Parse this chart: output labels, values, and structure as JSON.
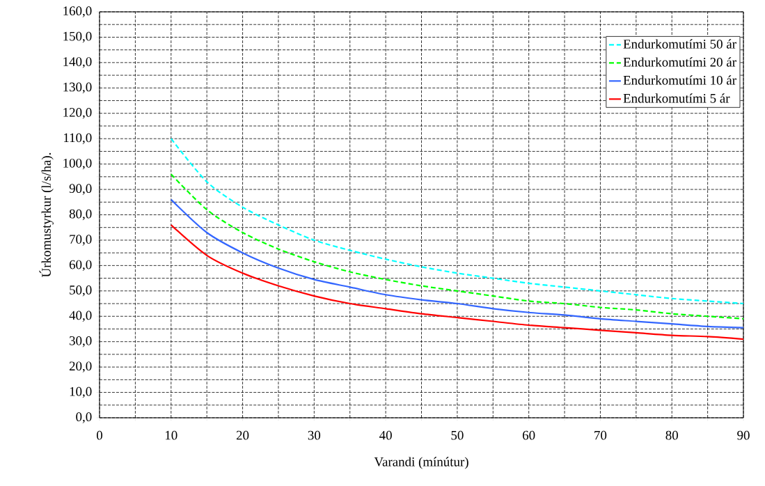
{
  "chart_data": {
    "type": "line",
    "xlabel": "Varandi (mínútur)",
    "ylabel": "Úrkomustyrkur (l/s/ha).",
    "x": [
      10,
      15,
      20,
      25,
      30,
      35,
      40,
      45,
      50,
      55,
      60,
      65,
      70,
      75,
      80,
      85,
      90
    ],
    "series": [
      {
        "name": "Endurkomutími 50 ár",
        "color": "#00ffff",
        "line_style": "dashed",
        "values": [
          110,
          93,
          83,
          76,
          70,
          66,
          62.5,
          59.5,
          57,
          55,
          53,
          51.5,
          50,
          48.5,
          47,
          46,
          45
        ]
      },
      {
        "name": "Endurkomutími 20 ár",
        "color": "#00ff00",
        "line_style": "dashed",
        "values": [
          96,
          82,
          73,
          66.5,
          61.5,
          57.5,
          54.5,
          52,
          50,
          48,
          46,
          45,
          43.5,
          42.5,
          41,
          40,
          39
        ]
      },
      {
        "name": "Endurkomutími 10 ár",
        "color": "#3366ff",
        "line_style": "solid",
        "values": [
          86,
          73,
          65,
          59,
          54.5,
          51.5,
          48.5,
          46.5,
          45,
          43,
          41.5,
          40.5,
          39,
          38,
          37,
          36,
          35.5
        ]
      },
      {
        "name": "Endurkomutími 5 ár",
        "color": "#ff0000",
        "line_style": "solid",
        "values": [
          76,
          64,
          57,
          52,
          48,
          45,
          43,
          41,
          39.5,
          38,
          36.5,
          35.5,
          34.5,
          33.5,
          32.5,
          32,
          31
        ]
      }
    ],
    "xlim": [
      0,
      90
    ],
    "xticks": [
      0,
      {
        "value": 5,
        "label": null
      },
      10,
      {
        "value": 15,
        "label": null
      },
      20,
      {
        "value": 25,
        "label": null
      },
      30,
      {
        "value": 35,
        "label": null
      },
      40,
      {
        "value": 45,
        "label": null
      },
      50,
      {
        "value": 55,
        "label": null
      },
      60,
      {
        "value": 65,
        "label": null
      },
      70,
      {
        "value": 75,
        "label": null
      },
      80,
      {
        "value": 85,
        "label": null
      },
      90
    ],
    "ylim": [
      0,
      160
    ],
    "yticks": [
      {
        "value": 0,
        "label": "0,0"
      },
      {
        "value": 5,
        "label": null
      },
      {
        "value": 10,
        "label": "10,0"
      },
      {
        "value": 15,
        "label": null
      },
      {
        "value": 20,
        "label": "20,0"
      },
      {
        "value": 25,
        "label": null
      },
      {
        "value": 30,
        "label": "30,0"
      },
      {
        "value": 35,
        "label": null
      },
      {
        "value": 40,
        "label": "40,0"
      },
      {
        "value": 45,
        "label": null
      },
      {
        "value": 50,
        "label": "50,0"
      },
      {
        "value": 55,
        "label": null
      },
      {
        "value": 60,
        "label": "60,0"
      },
      {
        "value": 65,
        "label": null
      },
      {
        "value": 70,
        "label": "70,0"
      },
      {
        "value": 75,
        "label": null
      },
      {
        "value": 80,
        "label": "80,0"
      },
      {
        "value": 85,
        "label": null
      },
      {
        "value": 90,
        "label": "90,0"
      },
      {
        "value": 95,
        "label": null
      },
      {
        "value": 100,
        "label": "100,0"
      },
      {
        "value": 105,
        "label": null
      },
      {
        "value": 110,
        "label": "110,0"
      },
      {
        "value": 115,
        "label": null
      },
      {
        "value": 120,
        "label": "120,0"
      },
      {
        "value": 125,
        "label": null
      },
      {
        "value": 130,
        "label": "130,0"
      },
      {
        "value": 135,
        "label": null
      },
      {
        "value": 140,
        "label": "140,0"
      },
      {
        "value": 145,
        "label": null
      },
      {
        "value": 150,
        "label": "150,0"
      },
      {
        "value": 155,
        "label": null
      },
      {
        "value": 160,
        "label": "160,0"
      }
    ],
    "grid": true,
    "legend": "top right",
    "marker": "none"
  }
}
